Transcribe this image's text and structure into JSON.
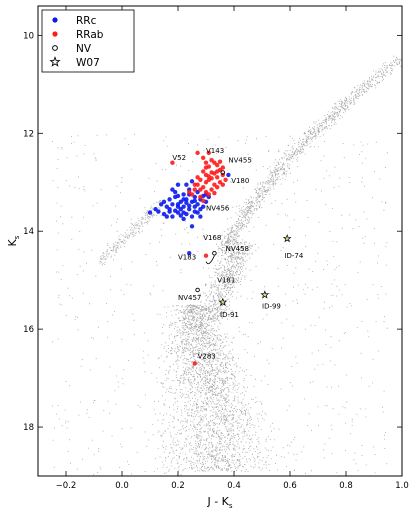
{
  "chart_data": {
    "type": "scatter",
    "title": "",
    "xlabel": "J - K",
    "xlabel_sub": "s",
    "ylabel": "K",
    "ylabel_sub": "s",
    "xlim": [
      -0.3,
      1.0
    ],
    "ylim": [
      19.0,
      9.4
    ],
    "y_inverted": true,
    "x_ticks": [
      {
        "value": -0.2,
        "label": "−0.2"
      },
      {
        "value": 0.0,
        "label": "0.0"
      },
      {
        "value": 0.2,
        "label": "0.2"
      },
      {
        "value": 0.4,
        "label": "0.4"
      },
      {
        "value": 0.6,
        "label": "0.6"
      },
      {
        "value": 0.8,
        "label": "0.8"
      },
      {
        "value": 1.0,
        "label": "1.0"
      }
    ],
    "y_ticks": [
      {
        "value": 10,
        "label": "10"
      },
      {
        "value": 12,
        "label": "12"
      },
      {
        "value": 14,
        "label": "14"
      },
      {
        "value": 16,
        "label": "16"
      },
      {
        "value": 18,
        "label": "18"
      }
    ],
    "grid": false,
    "legend_position": "top-left",
    "legend": [
      {
        "label": "RRc",
        "marker": "dot",
        "color": "#0b18f0"
      },
      {
        "label": "RRab",
        "marker": "dot",
        "color": "#ff1a1a"
      },
      {
        "label": "NV",
        "marker": "open-circle",
        "color": "#000000"
      },
      {
        "label": "W07",
        "marker": "star",
        "color": "#c8e08a"
      }
    ],
    "series": [
      {
        "name": "RRc",
        "color": "#0b18f0",
        "points": [
          [
            0.18,
            13.45
          ],
          [
            0.2,
            13.5
          ],
          [
            0.22,
            13.35
          ],
          [
            0.17,
            13.6
          ],
          [
            0.21,
            13.55
          ],
          [
            0.23,
            13.42
          ],
          [
            0.19,
            13.3
          ],
          [
            0.25,
            13.4
          ],
          [
            0.24,
            13.55
          ],
          [
            0.2,
            13.62
          ],
          [
            0.16,
            13.5
          ],
          [
            0.22,
            13.25
          ],
          [
            0.26,
            13.3
          ],
          [
            0.27,
            13.45
          ],
          [
            0.23,
            13.65
          ],
          [
            0.18,
            13.7
          ],
          [
            0.15,
            13.65
          ],
          [
            0.13,
            13.6
          ],
          [
            0.19,
            13.2
          ],
          [
            0.24,
            13.15
          ],
          [
            0.21,
            13.4
          ],
          [
            0.26,
            13.6
          ],
          [
            0.28,
            13.35
          ],
          [
            0.3,
            13.25
          ],
          [
            0.22,
            13.75
          ],
          [
            0.17,
            13.35
          ],
          [
            0.2,
            13.28
          ],
          [
            0.25,
            13.7
          ],
          [
            0.28,
            13.55
          ],
          [
            0.14,
            13.45
          ],
          [
            0.16,
            13.7
          ],
          [
            0.23,
            13.05
          ],
          [
            0.27,
            13.2
          ],
          [
            0.12,
            13.55
          ],
          [
            0.29,
            13.5
          ],
          [
            0.2,
            13.05
          ],
          [
            0.25,
            12.98
          ],
          [
            0.18,
            13.15
          ],
          [
            0.3,
            13.4
          ],
          [
            0.22,
            13.5
          ],
          [
            0.19,
            13.58
          ],
          [
            0.24,
            13.48
          ],
          [
            0.26,
            13.38
          ],
          [
            0.21,
            13.68
          ],
          [
            0.31,
            13.3
          ],
          [
            0.1,
            13.62
          ],
          [
            0.15,
            13.4
          ],
          [
            0.28,
            13.7
          ],
          [
            0.24,
            13.25
          ],
          [
            0.2,
            13.45
          ],
          [
            0.17,
            13.55
          ],
          [
            0.23,
            13.35
          ],
          [
            0.26,
            13.5
          ],
          [
            0.22,
            13.62
          ],
          [
            0.29,
            13.28
          ],
          [
            0.27,
            13.62
          ],
          [
            0.38,
            12.85
          ],
          [
            0.25,
            13.9
          ],
          [
            0.24,
            14.45
          ]
        ]
      },
      {
        "name": "RRab",
        "color": "#ff1a1a",
        "points": [
          [
            0.3,
            12.7
          ],
          [
            0.32,
            12.8
          ],
          [
            0.34,
            12.9
          ],
          [
            0.31,
            12.95
          ],
          [
            0.33,
            13.05
          ],
          [
            0.35,
            12.75
          ],
          [
            0.29,
            13.1
          ],
          [
            0.36,
            12.85
          ],
          [
            0.3,
            12.85
          ],
          [
            0.32,
            13.15
          ],
          [
            0.34,
            12.65
          ],
          [
            0.28,
            12.95
          ],
          [
            0.31,
            13.25
          ],
          [
            0.33,
            12.6
          ],
          [
            0.37,
            12.95
          ],
          [
            0.29,
            12.78
          ],
          [
            0.35,
            13.0
          ],
          [
            0.27,
            13.05
          ],
          [
            0.32,
            12.55
          ],
          [
            0.3,
            13.2
          ],
          [
            0.26,
            13.15
          ],
          [
            0.36,
            12.7
          ],
          [
            0.28,
            13.3
          ],
          [
            0.34,
            13.1
          ],
          [
            0.31,
            12.68
          ],
          [
            0.27,
            12.9
          ],
          [
            0.25,
            13.25
          ],
          [
            0.33,
            12.82
          ],
          [
            0.29,
            13.38
          ],
          [
            0.35,
            12.58
          ],
          [
            0.3,
            13.0
          ],
          [
            0.32,
            12.92
          ],
          [
            0.26,
            13.05
          ],
          [
            0.34,
            12.78
          ],
          [
            0.28,
            13.15
          ],
          [
            0.31,
            12.88
          ],
          [
            0.33,
            13.22
          ],
          [
            0.24,
            13.2
          ],
          [
            0.36,
            13.05
          ],
          [
            0.3,
            12.6
          ],
          [
            0.29,
            12.5
          ],
          [
            0.31,
            12.4
          ],
          [
            0.18,
            12.6
          ],
          [
            0.27,
            12.4
          ],
          [
            0.3,
            14.5
          ],
          [
            0.26,
            16.7
          ]
        ]
      },
      {
        "name": "NV",
        "color": "#000000",
        "points": [
          [
            0.36,
            12.8
          ],
          [
            0.33,
            14.45
          ],
          [
            0.27,
            15.2
          ]
        ]
      },
      {
        "name": "W07",
        "color": "#c8e08a",
        "points": [
          [
            0.59,
            14.15
          ],
          [
            0.51,
            15.3
          ],
          [
            0.36,
            15.45
          ]
        ]
      }
    ],
    "annotations": [
      {
        "text": "V143",
        "x": 0.3,
        "y": 12.4
      },
      {
        "text": "V52",
        "x": 0.18,
        "y": 12.55
      },
      {
        "text": "NV455",
        "x": 0.38,
        "y": 12.6
      },
      {
        "text": "V180",
        "x": 0.39,
        "y": 13.02
      },
      {
        "text": "NV456",
        "x": 0.3,
        "y": 13.58
      },
      {
        "text": "V168",
        "x": 0.29,
        "y": 14.18
      },
      {
        "text": "NV458",
        "x": 0.37,
        "y": 14.4
      },
      {
        "text": "V183",
        "x": 0.2,
        "y": 14.58
      },
      {
        "text": "ID-74",
        "x": 0.58,
        "y": 14.55
      },
      {
        "text": "V181",
        "x": 0.34,
        "y": 15.05
      },
      {
        "text": "NV457",
        "x": 0.2,
        "y": 15.4
      },
      {
        "text": "ID-99",
        "x": 0.5,
        "y": 15.58
      },
      {
        "text": "ID-91",
        "x": 0.35,
        "y": 15.75
      },
      {
        "text": "V283",
        "x": 0.27,
        "y": 16.6
      }
    ]
  }
}
